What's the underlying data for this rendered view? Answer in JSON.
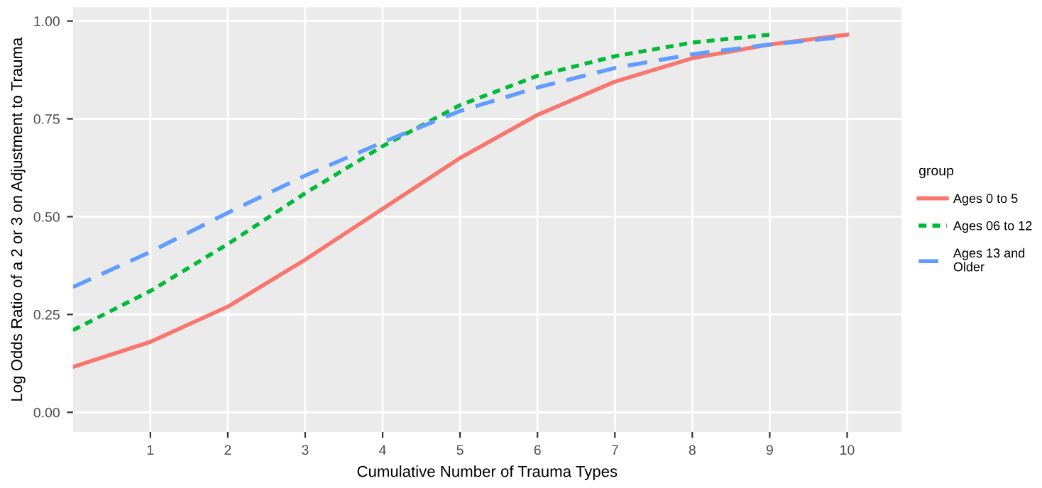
{
  "chart_data": {
    "type": "line",
    "xlabel": "Cumulative Number of Trauma Types",
    "ylabel": "Log Odds Ratio of a 2 or 3 on Adjustment to Trauma",
    "legend_title": "group",
    "legend": "right",
    "grid": true,
    "xlim": [
      0,
      10.7
    ],
    "xticks": [
      1,
      2,
      3,
      4,
      5,
      6,
      7,
      8,
      9,
      10
    ],
    "ylim": [
      -0.05,
      1.035
    ],
    "yticks": [
      {
        "value": 0,
        "label": "0.00"
      },
      {
        "value": 0.25,
        "label": "0.25"
      },
      {
        "value": 0.5,
        "label": "0.50"
      },
      {
        "value": 0.75,
        "label": "0.75"
      },
      {
        "value": 1,
        "label": "1.00"
      }
    ],
    "series": [
      {
        "name": "Ages 0 to 5",
        "color": "#f8766d",
        "line_style": "solid",
        "x": [
          0,
          1,
          2,
          3,
          4,
          5,
          6,
          7,
          8,
          9,
          10
        ],
        "values": [
          0.116,
          0.18,
          0.27,
          0.39,
          0.52,
          0.65,
          0.76,
          0.845,
          0.905,
          0.94,
          0.965
        ]
      },
      {
        "name": "Ages 06 to 12",
        "color": "#00ba38",
        "line_style": "dotted",
        "x": [
          0,
          1,
          2,
          3,
          4,
          5,
          6,
          7,
          8,
          9
        ],
        "values": [
          0.21,
          0.31,
          0.43,
          0.56,
          0.68,
          0.785,
          0.86,
          0.91,
          0.945,
          0.965
        ]
      },
      {
        "name": "Ages 13 and\nOlder",
        "color": "#619cff",
        "line_style": "dashed",
        "x": [
          0,
          1,
          2,
          3,
          4,
          5,
          6,
          7,
          8,
          9,
          10
        ],
        "values": [
          0.32,
          0.41,
          0.51,
          0.605,
          0.69,
          0.77,
          0.83,
          0.88,
          0.915,
          0.94,
          0.96
        ]
      }
    ]
  }
}
